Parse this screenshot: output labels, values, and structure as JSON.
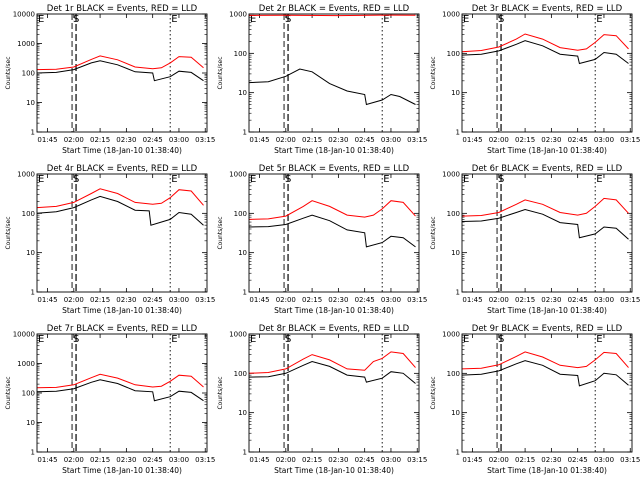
{
  "window": {
    "title": ""
  },
  "chart_data": [
    {
      "type": "line",
      "title": "Det 1r BLACK = Events, RED = LLD",
      "ylabel": "Counts/sec",
      "xlabel": "Start Time (18-Jan-10 01:38:40)",
      "ylim": [
        1,
        10000
      ],
      "log_y": true,
      "xticks": [
        "01:45",
        "02:00",
        "02:15",
        "02:30",
        "02:45",
        "03:00",
        "03:15"
      ],
      "markers": [
        {
          "label": "E",
          "x": "01:39"
        },
        {
          "label": "S",
          "x": "01:59"
        },
        {
          "label": "E",
          "x": "02:55"
        }
      ],
      "series": [
        {
          "name": "RED",
          "color": "#ff0000",
          "x": [
            "01:39",
            "01:50",
            "02:00",
            "02:10",
            "02:15",
            "02:25",
            "02:35",
            "02:45",
            "02:50",
            "02:55",
            "03:00",
            "03:07",
            "03:14"
          ],
          "y": [
            130,
            135,
            160,
            290,
            380,
            280,
            160,
            140,
            150,
            220,
            360,
            340,
            150
          ]
        },
        {
          "name": "BLACK",
          "color": "#000000",
          "x": [
            "01:39",
            "01:50",
            "02:00",
            "02:10",
            "02:15",
            "02:25",
            "02:35",
            "02:45",
            "02:46",
            "02:55",
            "03:00",
            "03:07",
            "03:14"
          ],
          "y": [
            100,
            105,
            130,
            220,
            260,
            190,
            110,
            100,
            55,
            75,
            115,
            105,
            55
          ]
        }
      ]
    },
    {
      "type": "line",
      "title": "Det 2r BLACK = Events, RED = LLD",
      "ylabel": "Counts/sec",
      "xlabel": "Start Time (18-Jan-10 01:38:40)",
      "ylim": [
        1,
        1000
      ],
      "log_y": true,
      "xticks": [
        "01:45",
        "02:00",
        "02:15",
        "02:30",
        "02:45",
        "03:00",
        "03:15"
      ],
      "markers": [
        {
          "label": "E",
          "x": "01:39"
        },
        {
          "label": "S",
          "x": "01:59"
        },
        {
          "label": "E",
          "x": "02:55"
        }
      ],
      "series": [
        {
          "name": "RED",
          "color": "#ff0000",
          "x": [
            "01:39",
            "02:00",
            "02:30",
            "03:00",
            "03:14"
          ],
          "y": [
            920,
            930,
            910,
            940,
            930
          ]
        },
        {
          "name": "BLACK",
          "color": "#000000",
          "x": [
            "01:39",
            "01:50",
            "02:00",
            "02:08",
            "02:15",
            "02:25",
            "02:35",
            "02:45",
            "02:46",
            "02:55",
            "03:00",
            "03:05",
            "03:14"
          ],
          "y": [
            18,
            19,
            26,
            40,
            34,
            17,
            11,
            9,
            5,
            6.5,
            9,
            8,
            5
          ]
        }
      ]
    },
    {
      "type": "line",
      "title": "Det 3r BLACK = Events, RED = LLD",
      "ylabel": "Counts/sec",
      "xlabel": "Start Time (18-Jan-10 01:38:40)",
      "ylim": [
        1,
        1000
      ],
      "log_y": true,
      "xticks": [
        "01:45",
        "02:00",
        "02:15",
        "02:30",
        "02:45",
        "03:00",
        "03:15"
      ],
      "markers": [
        {
          "label": "E",
          "x": "01:39"
        },
        {
          "label": "S",
          "x": "01:59"
        },
        {
          "label": "E",
          "x": "02:55"
        }
      ],
      "series": [
        {
          "name": "RED",
          "color": "#ff0000",
          "x": [
            "01:39",
            "01:50",
            "02:00",
            "02:10",
            "02:15",
            "02:25",
            "02:35",
            "02:45",
            "02:50",
            "02:55",
            "03:00",
            "03:07",
            "03:14"
          ],
          "y": [
            110,
            118,
            145,
            230,
            310,
            230,
            140,
            120,
            130,
            190,
            300,
            280,
            130
          ]
        },
        {
          "name": "BLACK",
          "color": "#000000",
          "x": [
            "01:39",
            "01:50",
            "02:00",
            "02:10",
            "02:15",
            "02:25",
            "02:35",
            "02:45",
            "02:46",
            "02:55",
            "03:00",
            "03:07",
            "03:14"
          ],
          "y": [
            90,
            95,
            115,
            170,
            210,
            155,
            95,
            85,
            55,
            70,
            105,
            95,
            55
          ]
        }
      ]
    },
    {
      "type": "line",
      "title": "Det 4r BLACK = Events, RED = LLD",
      "ylabel": "Counts/sec",
      "xlabel": "Start Time (18-Jan-10 01:38:40)",
      "ylim": [
        1,
        1000
      ],
      "log_y": true,
      "xticks": [
        "01:45",
        "02:00",
        "02:15",
        "02:30",
        "02:45",
        "03:00",
        "03:15"
      ],
      "markers": [
        {
          "label": "E",
          "x": "01:39"
        },
        {
          "label": "S",
          "x": "01:59"
        },
        {
          "label": "E",
          "x": "02:55"
        }
      ],
      "series": [
        {
          "name": "RED",
          "color": "#ff0000",
          "x": [
            "01:39",
            "01:50",
            "02:00",
            "02:10",
            "02:15",
            "02:25",
            "02:35",
            "02:45",
            "02:50",
            "02:55",
            "03:00",
            "03:07",
            "03:14"
          ],
          "y": [
            140,
            150,
            190,
            320,
            420,
            320,
            190,
            170,
            180,
            250,
            400,
            370,
            160
          ]
        },
        {
          "name": "BLACK",
          "color": "#000000",
          "x": [
            "01:39",
            "01:50",
            "02:00",
            "02:10",
            "02:15",
            "02:25",
            "02:35",
            "02:43",
            "02:44",
            "02:55",
            "03:00",
            "03:07",
            "03:14"
          ],
          "y": [
            100,
            110,
            140,
            220,
            270,
            200,
            120,
            115,
            50,
            70,
            105,
            95,
            50
          ]
        }
      ]
    },
    {
      "type": "line",
      "title": "Det 5r BLACK = Events, RED = LLD",
      "ylabel": "Counts/sec",
      "xlabel": "Start Time (18-Jan-10 01:38:40)",
      "ylim": [
        1,
        1000
      ],
      "log_y": true,
      "xticks": [
        "01:45",
        "02:00",
        "02:15",
        "02:30",
        "02:45",
        "03:00",
        "03:15"
      ],
      "markers": [
        {
          "label": "E",
          "x": "01:39"
        },
        {
          "label": "S",
          "x": "01:59"
        },
        {
          "label": "E",
          "x": "02:55"
        }
      ],
      "series": [
        {
          "name": "RED",
          "color": "#ff0000",
          "x": [
            "01:39",
            "01:50",
            "02:00",
            "02:10",
            "02:15",
            "02:25",
            "02:35",
            "02:45",
            "02:50",
            "02:55",
            "03:00",
            "03:07",
            "03:14"
          ],
          "y": [
            70,
            72,
            85,
            150,
            210,
            150,
            90,
            80,
            90,
            130,
            210,
            190,
            85
          ]
        },
        {
          "name": "BLACK",
          "color": "#000000",
          "x": [
            "01:39",
            "01:50",
            "02:00",
            "02:10",
            "02:15",
            "02:25",
            "02:35",
            "02:45",
            "02:46",
            "02:55",
            "03:00",
            "03:07",
            "03:14"
          ],
          "y": [
            45,
            46,
            52,
            75,
            90,
            65,
            38,
            32,
            14,
            18,
            26,
            24,
            14
          ]
        }
      ]
    },
    {
      "type": "line",
      "title": "Det 6r BLACK = Events, RED = LLD",
      "ylabel": "Counts/sec",
      "xlabel": "Start Time (18-Jan-10 01:38:40)",
      "ylim": [
        1,
        1000
      ],
      "log_y": true,
      "xticks": [
        "01:45",
        "02:00",
        "02:15",
        "02:30",
        "02:45",
        "03:00",
        "03:15"
      ],
      "markers": [
        {
          "label": "E",
          "x": "01:39"
        },
        {
          "label": "S",
          "x": "01:59"
        },
        {
          "label": "E",
          "x": "02:55"
        }
      ],
      "series": [
        {
          "name": "RED",
          "color": "#ff0000",
          "x": [
            "01:39",
            "01:50",
            "02:00",
            "02:10",
            "02:15",
            "02:25",
            "02:35",
            "02:45",
            "02:50",
            "02:55",
            "03:00",
            "03:07",
            "03:14"
          ],
          "y": [
            85,
            88,
            105,
            170,
            220,
            170,
            105,
            90,
            100,
            150,
            240,
            220,
            100
          ]
        },
        {
          "name": "BLACK",
          "color": "#000000",
          "x": [
            "01:39",
            "01:50",
            "02:00",
            "02:10",
            "02:15",
            "02:25",
            "02:35",
            "02:45",
            "02:46",
            "02:55",
            "03:00",
            "03:07",
            "03:14"
          ],
          "y": [
            62,
            64,
            75,
            105,
            125,
            95,
            58,
            52,
            24,
            30,
            45,
            42,
            22
          ]
        }
      ]
    },
    {
      "type": "line",
      "title": "Det 7r BLACK = Events, RED = LLD",
      "ylabel": "Counts/sec",
      "xlabel": "Start Time (18-Jan-10 01:38:40)",
      "ylim": [
        1,
        10000
      ],
      "log_y": true,
      "xticks": [
        "01:45",
        "02:00",
        "02:15",
        "02:30",
        "02:45",
        "03:00",
        "03:15"
      ],
      "markers": [
        {
          "label": "E",
          "x": "01:39"
        },
        {
          "label": "S",
          "x": "01:59"
        },
        {
          "label": "E",
          "x": "02:55"
        }
      ],
      "series": [
        {
          "name": "RED",
          "color": "#ff0000",
          "x": [
            "01:39",
            "01:50",
            "02:00",
            "02:10",
            "02:15",
            "02:25",
            "02:35",
            "02:45",
            "02:50",
            "02:55",
            "03:00",
            "03:07",
            "03:14"
          ],
          "y": [
            150,
            155,
            190,
            330,
            430,
            320,
            190,
            160,
            170,
            250,
            400,
            370,
            160
          ]
        },
        {
          "name": "BLACK",
          "color": "#000000",
          "x": [
            "01:39",
            "01:50",
            "02:00",
            "02:10",
            "02:15",
            "02:25",
            "02:35",
            "02:45",
            "02:46",
            "02:55",
            "03:00",
            "03:07",
            "03:14"
          ],
          "y": [
            110,
            115,
            140,
            230,
            280,
            210,
            120,
            110,
            55,
            75,
            115,
            105,
            55
          ]
        }
      ]
    },
    {
      "type": "line",
      "title": "Det 8r BLACK = Events, RED = LLD",
      "ylabel": "Counts/sec",
      "xlabel": "Start Time (18-Jan-10 01:38:40)",
      "ylim": [
        1,
        1000
      ],
      "log_y": true,
      "xticks": [
        "01:45",
        "02:00",
        "02:15",
        "02:30",
        "02:45",
        "03:00",
        "03:15"
      ],
      "markers": [
        {
          "label": "E",
          "x": "01:39"
        },
        {
          "label": "S",
          "x": "01:59"
        },
        {
          "label": "E",
          "x": "02:55"
        }
      ],
      "series": [
        {
          "name": "RED",
          "color": "#ff0000",
          "x": [
            "01:39",
            "01:50",
            "02:00",
            "02:10",
            "02:15",
            "02:25",
            "02:35",
            "02:45",
            "02:50",
            "02:55",
            "03:00",
            "03:07",
            "03:14"
          ],
          "y": [
            100,
            105,
            130,
            230,
            300,
            220,
            130,
            120,
            200,
            240,
            350,
            320,
            140
          ]
        },
        {
          "name": "BLACK",
          "color": "#000000",
          "x": [
            "01:39",
            "01:50",
            "02:00",
            "02:10",
            "02:15",
            "02:25",
            "02:35",
            "02:45",
            "02:46",
            "02:55",
            "03:00",
            "03:07",
            "03:14"
          ],
          "y": [
            80,
            82,
            100,
            160,
            200,
            150,
            90,
            80,
            60,
            75,
            110,
            100,
            55
          ]
        }
      ]
    },
    {
      "type": "line",
      "title": "Det 9r BLACK = Events, RED = LLD",
      "ylabel": "Counts/sec",
      "xlabel": "Start Time (18-Jan-10 01:38:40)",
      "ylim": [
        1,
        1000
      ],
      "log_y": true,
      "xticks": [
        "01:45",
        "02:00",
        "02:15",
        "02:30",
        "02:45",
        "03:00",
        "03:15"
      ],
      "markers": [
        {
          "label": "E",
          "x": "01:39"
        },
        {
          "label": "S",
          "x": "01:59"
        },
        {
          "label": "E",
          "x": "02:55"
        }
      ],
      "series": [
        {
          "name": "RED",
          "color": "#ff0000",
          "x": [
            "01:39",
            "01:50",
            "02:00",
            "02:10",
            "02:15",
            "02:25",
            "02:35",
            "02:45",
            "02:50",
            "02:55",
            "03:00",
            "03:07",
            "03:14"
          ],
          "y": [
            130,
            135,
            165,
            270,
            350,
            260,
            160,
            140,
            150,
            220,
            340,
            320,
            140
          ]
        },
        {
          "name": "BLACK",
          "color": "#000000",
          "x": [
            "01:39",
            "01:50",
            "02:00",
            "02:10",
            "02:15",
            "02:25",
            "02:35",
            "02:45",
            "02:46",
            "02:55",
            "03:00",
            "03:07",
            "03:14"
          ],
          "y": [
            90,
            95,
            115,
            175,
            210,
            160,
            95,
            88,
            48,
            65,
            100,
            92,
            50
          ]
        }
      ]
    }
  ]
}
